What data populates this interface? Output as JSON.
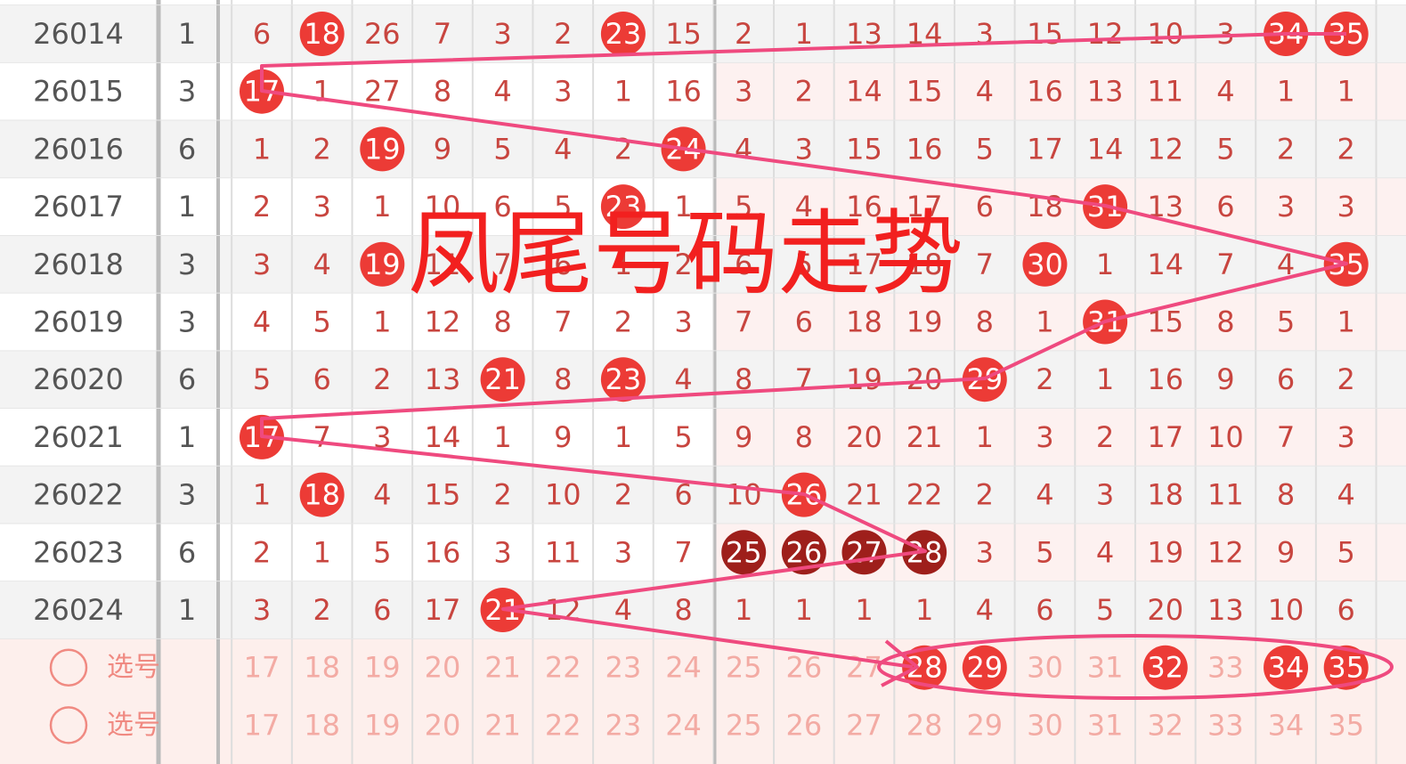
{
  "title": "凤尾号码走势",
  "colors": {
    "hit": "#ec3b36",
    "repeat": "#9e1f1b",
    "cell_text": "#c8453f",
    "period_text": "#555555",
    "select_text": "#f3aba4",
    "select_label": "#f08a82",
    "trend_line": "#ef4a7f"
  },
  "rows": [
    {
      "period": "26014",
      "count": 1,
      "cells": [
        6,
        18,
        26,
        7,
        3,
        2,
        23,
        15,
        2,
        1,
        13,
        14,
        3,
        15,
        12,
        10,
        3,
        34,
        35
      ],
      "hits": [
        1,
        6,
        17,
        18
      ]
    },
    {
      "period": "26015",
      "count": 3,
      "cells": [
        17,
        1,
        27,
        8,
        4,
        3,
        1,
        16,
        3,
        2,
        14,
        15,
        4,
        16,
        13,
        11,
        4,
        1,
        1
      ],
      "hits": [
        0
      ]
    },
    {
      "period": "26016",
      "count": 6,
      "cells": [
        1,
        2,
        19,
        9,
        5,
        4,
        2,
        24,
        4,
        3,
        15,
        16,
        5,
        17,
        14,
        12,
        5,
        2,
        2
      ],
      "hits": [
        2,
        7
      ]
    },
    {
      "period": "26017",
      "count": 1,
      "cells": [
        2,
        3,
        1,
        10,
        6,
        5,
        23,
        1,
        5,
        4,
        16,
        17,
        6,
        18,
        31,
        13,
        6,
        3,
        3
      ],
      "hits": [
        6,
        14
      ]
    },
    {
      "period": "26018",
      "count": 3,
      "cells": [
        3,
        4,
        19,
        11,
        7,
        6,
        1,
        2,
        6,
        5,
        17,
        18,
        7,
        30,
        1,
        14,
        7,
        4,
        35
      ],
      "hits": [
        2,
        13,
        18
      ]
    },
    {
      "period": "26019",
      "count": 3,
      "cells": [
        4,
        5,
        1,
        12,
        8,
        7,
        2,
        3,
        7,
        6,
        18,
        19,
        8,
        1,
        31,
        15,
        8,
        5,
        1
      ],
      "hits": [
        14
      ]
    },
    {
      "period": "26020",
      "count": 6,
      "cells": [
        5,
        6,
        2,
        13,
        21,
        8,
        23,
        4,
        8,
        7,
        19,
        20,
        29,
        2,
        1,
        16,
        9,
        6,
        2
      ],
      "hits": [
        4,
        6,
        12
      ]
    },
    {
      "period": "26021",
      "count": 1,
      "cells": [
        17,
        7,
        3,
        14,
        1,
        9,
        1,
        5,
        9,
        8,
        20,
        21,
        1,
        3,
        2,
        17,
        10,
        7,
        3
      ],
      "hits": [
        0
      ]
    },
    {
      "period": "26022",
      "count": 3,
      "cells": [
        1,
        18,
        4,
        15,
        2,
        10,
        2,
        6,
        10,
        26,
        21,
        22,
        2,
        4,
        3,
        18,
        11,
        8,
        4
      ],
      "hits": [
        1,
        9
      ]
    },
    {
      "period": "26023",
      "count": 6,
      "cells": [
        2,
        1,
        5,
        16,
        3,
        11,
        3,
        7,
        25,
        26,
        27,
        28,
        3,
        5,
        4,
        19,
        12,
        9,
        5
      ],
      "hits": [
        8,
        9,
        10,
        11
      ],
      "hit_style": "repeat"
    },
    {
      "period": "26024",
      "count": 1,
      "cells": [
        3,
        2,
        6,
        17,
        21,
        12,
        4,
        8,
        1,
        1,
        1,
        1,
        4,
        6,
        5,
        20,
        13,
        10,
        6
      ],
      "hits": [
        4
      ]
    }
  ],
  "select_rows": [
    {
      "label": "选号",
      "numbers": [
        17,
        18,
        19,
        20,
        21,
        22,
        23,
        24,
        25,
        26,
        27,
        28,
        29,
        30,
        31,
        32,
        33,
        34,
        35
      ],
      "hits": [
        11,
        12,
        15,
        17,
        18
      ]
    },
    {
      "label": "选号",
      "numbers": [
        17,
        18,
        19,
        20,
        21,
        22,
        23,
        24,
        25,
        26,
        27,
        28,
        29,
        30,
        31,
        32,
        33,
        34,
        35
      ],
      "hits": []
    }
  ]
}
